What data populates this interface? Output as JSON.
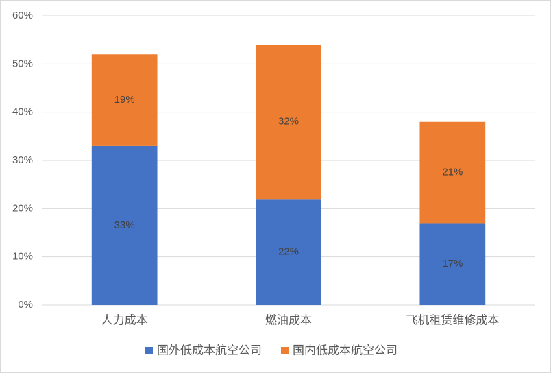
{
  "chart_data": {
    "type": "stacked_bar",
    "categories": [
      "人力成本",
      "燃油成本",
      "飞机租赁维修成本"
    ],
    "series": [
      {
        "name": "国外低成本航空公司",
        "color": "#4472c4",
        "values": [
          33,
          22,
          17
        ],
        "value_labels": [
          "33%",
          "22%",
          "17%"
        ]
      },
      {
        "name": "国内低成本航空公司",
        "color": "#ed7d31",
        "values": [
          19,
          32,
          21
        ],
        "value_labels": [
          "19%",
          "32%",
          "21%"
        ]
      }
    ],
    "ylim": [
      0,
      60
    ],
    "yticks": [
      {
        "value": 0,
        "label": "0%"
      },
      {
        "value": 10,
        "label": "10%"
      },
      {
        "value": 20,
        "label": "20%"
      },
      {
        "value": 30,
        "label": "30%"
      },
      {
        "value": 40,
        "label": "40%"
      },
      {
        "value": 50,
        "label": "50%"
      },
      {
        "value": 60,
        "label": "60%"
      }
    ],
    "grid": true,
    "legend": "bottom"
  }
}
